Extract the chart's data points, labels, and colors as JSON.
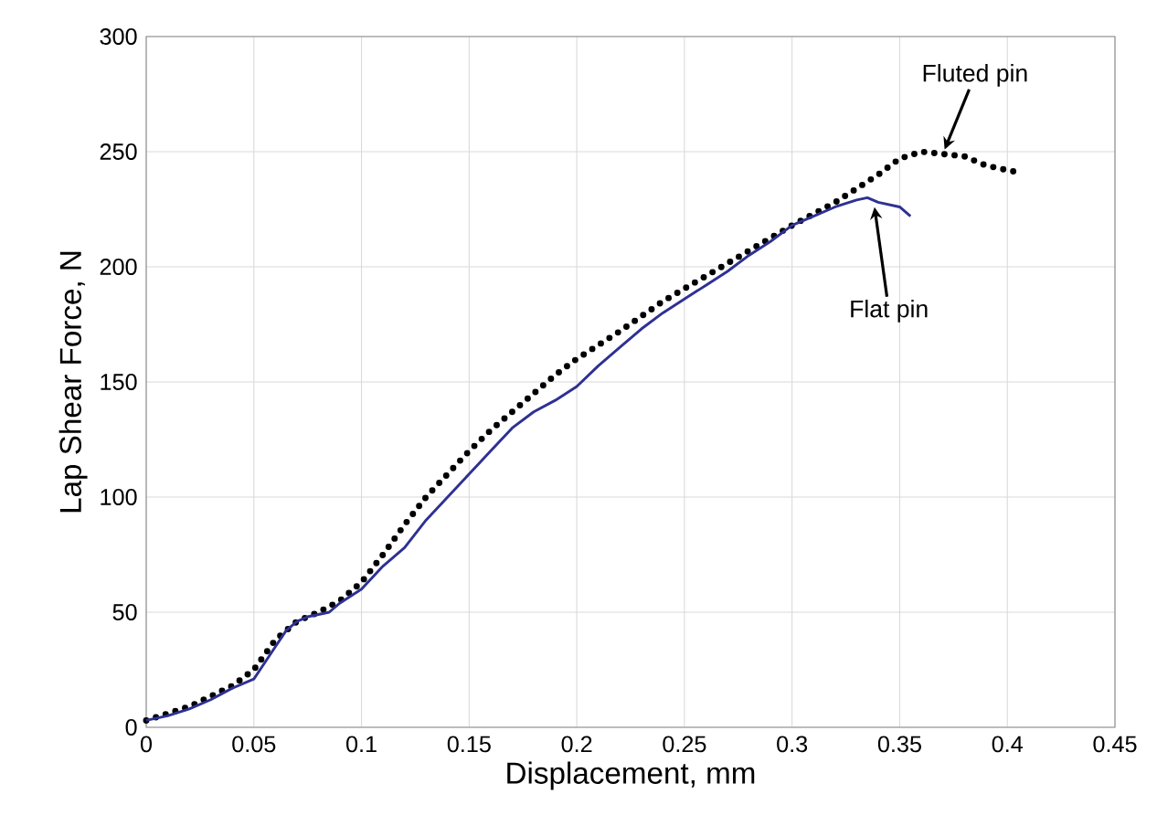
{
  "chart_data": {
    "type": "line",
    "xlabel": "Displacement, mm",
    "ylabel": "Lap Shear Force, N",
    "xlim": [
      0,
      0.45
    ],
    "xticks": [
      0,
      0.05,
      0.1,
      0.15,
      0.2,
      0.25,
      0.3,
      0.35,
      0.4,
      0.45
    ],
    "ylim": [
      0,
      300
    ],
    "yticks": [
      0,
      50,
      100,
      150,
      200,
      250,
      300
    ],
    "grid": true,
    "series": [
      {
        "color": "#000000",
        "line_style": "dotted",
        "x": [
          0,
          0.02,
          0.04,
          0.05,
          0.06,
          0.07,
          0.08,
          0.09,
          0.1,
          0.11,
          0.12,
          0.13,
          0.14,
          0.15,
          0.16,
          0.17,
          0.18,
          0.19,
          0.2,
          0.22,
          0.24,
          0.26,
          0.28,
          0.3,
          0.32,
          0.34,
          0.35,
          0.36,
          0.37,
          0.38,
          0.39,
          0.4,
          0.405
        ],
        "values": [
          3,
          9,
          18,
          25,
          38,
          46,
          50,
          55,
          63,
          75,
          88,
          100,
          110,
          120,
          129,
          137,
          145,
          153,
          160,
          172,
          185,
          196,
          207,
          218,
          228,
          240,
          247,
          250,
          249,
          248,
          244,
          242,
          241
        ]
      },
      {
        "color": "#2e3192",
        "line_style": "solid",
        "x": [
          0,
          0.01,
          0.02,
          0.03,
          0.04,
          0.05,
          0.055,
          0.06,
          0.065,
          0.07,
          0.075,
          0.08,
          0.085,
          0.09,
          0.1,
          0.11,
          0.12,
          0.13,
          0.14,
          0.15,
          0.16,
          0.17,
          0.18,
          0.19,
          0.2,
          0.21,
          0.22,
          0.23,
          0.24,
          0.25,
          0.26,
          0.27,
          0.28,
          0.29,
          0.3,
          0.31,
          0.32,
          0.33,
          0.335,
          0.34,
          0.35,
          0.355
        ],
        "values": [
          3,
          5,
          8,
          12,
          17,
          21,
          28,
          35,
          42,
          46,
          48,
          49,
          50,
          54,
          60,
          70,
          78,
          90,
          100,
          110,
          120,
          130,
          137,
          142,
          148,
          157,
          165,
          173,
          180,
          186,
          192,
          198,
          205,
          211,
          218,
          222,
          226,
          229,
          230,
          228,
          226,
          222
        ]
      }
    ],
    "annotations": [
      {
        "text": "Fluted pin",
        "x": 0.37,
        "y": 249
      },
      {
        "text": "Flat pin",
        "x": 0.338,
        "y": 228
      }
    ]
  }
}
